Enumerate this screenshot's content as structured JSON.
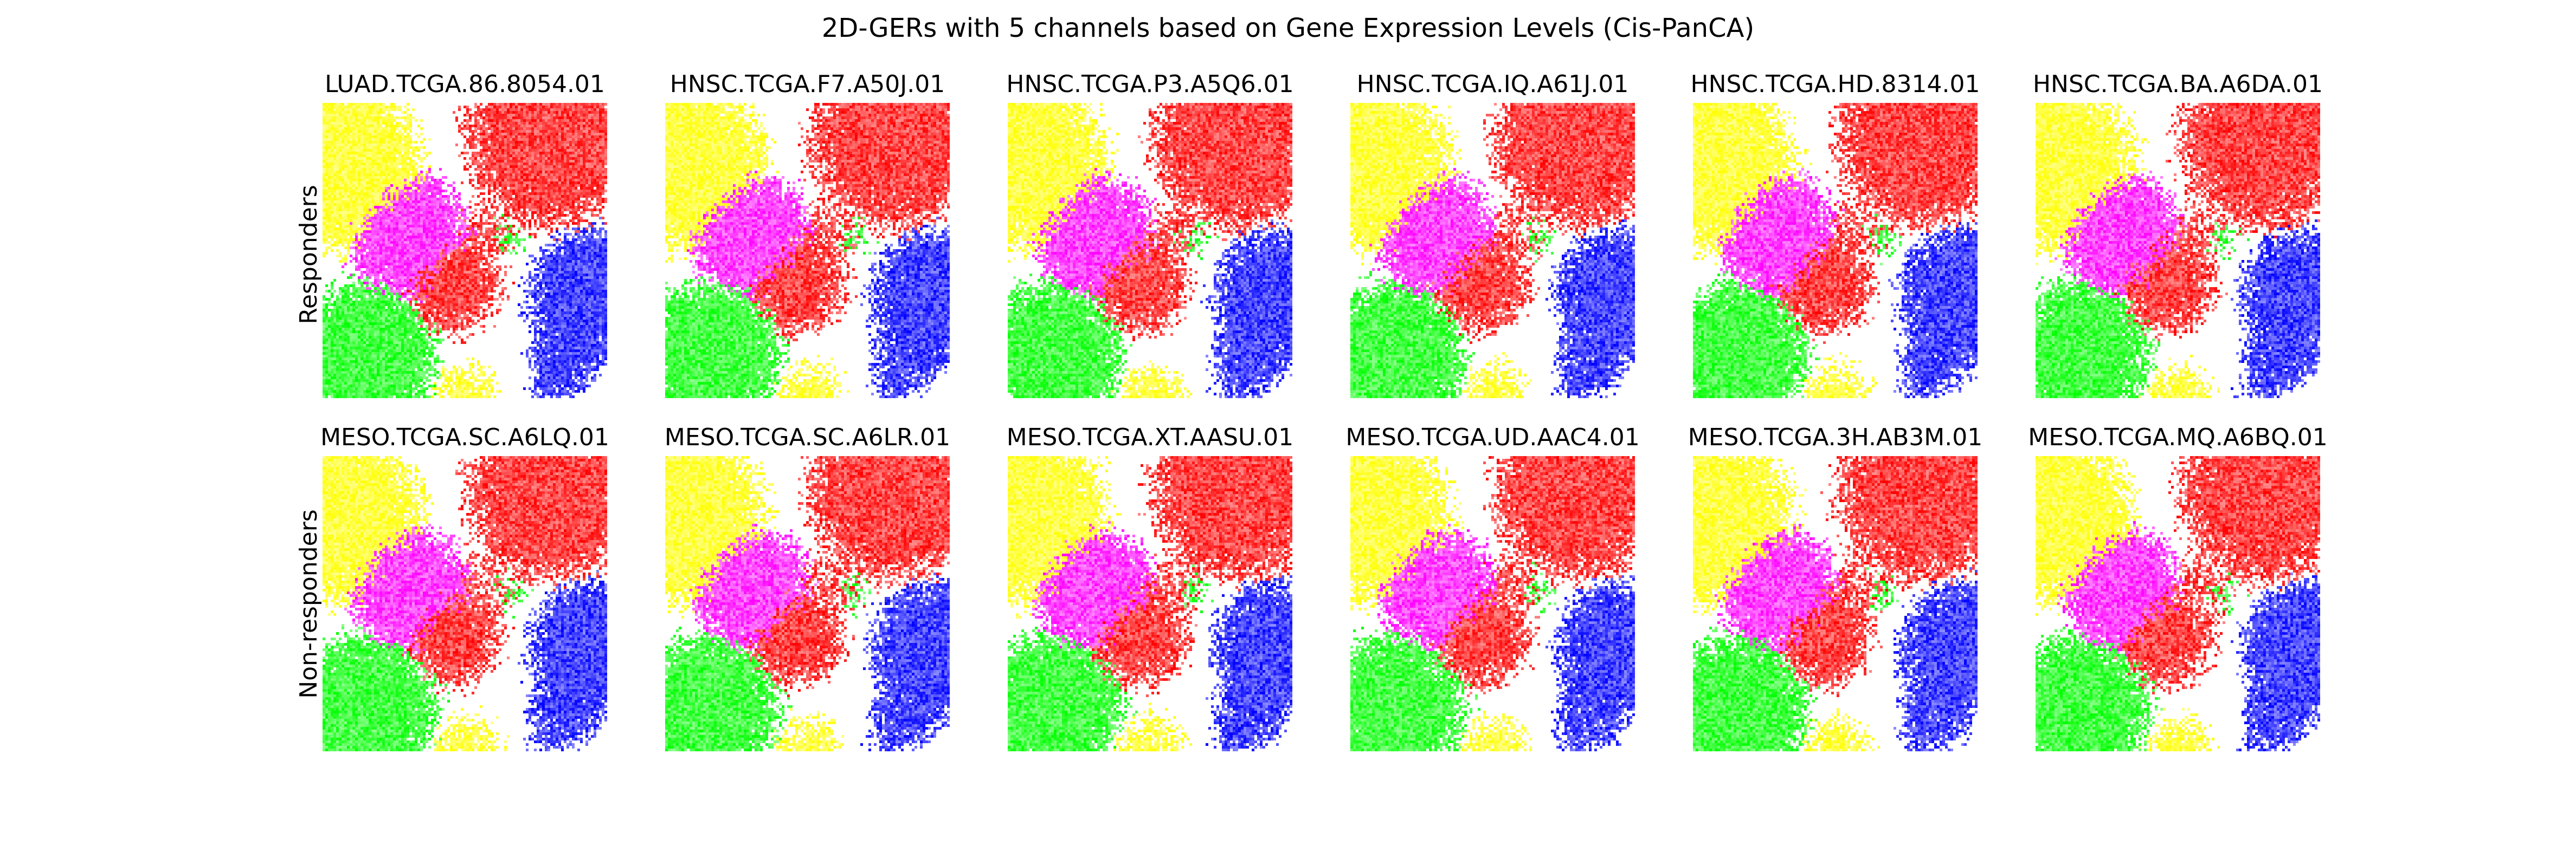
{
  "figure": {
    "title": "2D-GERs with 5 channels based on Gene Expression Levels (Cis-PanCA)"
  },
  "channel_colors": [
    "#ff0000",
    "#00ff00",
    "#0000ff",
    "#ffff00",
    "#ff00ff"
  ],
  "rows": [
    {
      "label": "Responders",
      "samples": [
        "LUAD.TCGA.86.8054.01",
        "HNSC.TCGA.F7.A50J.01",
        "HNSC.TCGA.P3.A5Q6.01",
        "HNSC.TCGA.IQ.A61J.01",
        "HNSC.TCGA.HD.8314.01",
        "HNSC.TCGA.BA.A6DA.01"
      ]
    },
    {
      "label": "Non-responders",
      "samples": [
        "MESO.TCGA.SC.A6LQ.01",
        "MESO.TCGA.SC.A6LR.01",
        "MESO.TCGA.XT.AASU.01",
        "MESO.TCGA.UD.AAC4.01",
        "MESO.TCGA.3H.AB3M.01",
        "MESO.TCGA.MQ.A6BQ.01"
      ]
    }
  ]
}
